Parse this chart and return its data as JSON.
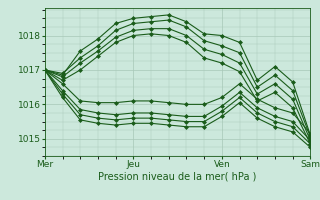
{
  "xlabel": "Pression niveau de la mer( hPa )",
  "bg_color": "#cce8dc",
  "plot_bg_color": "#cce8dc",
  "line_color": "#1a5c1a",
  "marker": "D",
  "marker_size": 2.0,
  "linewidth": 0.8,
  "ylim": [
    1014.5,
    1018.8
  ],
  "yticks": [
    1015,
    1016,
    1017,
    1018
  ],
  "xtick_labels": [
    "Mer",
    "Jeu",
    "Ven",
    "Sam"
  ],
  "grid_color": "#a8c8b8",
  "series": [
    [
      1017.0,
      1016.85,
      1017.55,
      1017.9,
      1018.35,
      1018.5,
      1018.55,
      1018.6,
      1018.4,
      1018.05,
      1018.0,
      1017.8,
      1016.7,
      1017.1,
      1016.65,
      1015.1
    ],
    [
      1017.0,
      1016.9,
      1017.35,
      1017.7,
      1018.15,
      1018.35,
      1018.4,
      1018.45,
      1018.25,
      1017.85,
      1017.7,
      1017.5,
      1016.5,
      1016.85,
      1016.4,
      1015.05
    ],
    [
      1017.0,
      1016.8,
      1017.2,
      1017.55,
      1017.95,
      1018.15,
      1018.2,
      1018.2,
      1018.0,
      1017.6,
      1017.45,
      1017.2,
      1016.3,
      1016.6,
      1016.15,
      1014.95
    ],
    [
      1017.0,
      1016.7,
      1017.0,
      1017.4,
      1017.8,
      1018.0,
      1018.05,
      1018.0,
      1017.8,
      1017.35,
      1017.2,
      1016.95,
      1016.1,
      1016.35,
      1015.9,
      1014.85
    ],
    [
      1017.0,
      1016.6,
      1016.1,
      1016.05,
      1016.05,
      1016.1,
      1016.1,
      1016.05,
      1016.0,
      1016.0,
      1016.2,
      1016.6,
      1016.15,
      1015.9,
      1015.75,
      1015.15
    ],
    [
      1017.0,
      1016.4,
      1015.85,
      1015.75,
      1015.7,
      1015.75,
      1015.75,
      1015.7,
      1015.65,
      1015.65,
      1015.95,
      1016.35,
      1015.9,
      1015.65,
      1015.5,
      1014.95
    ],
    [
      1017.0,
      1016.3,
      1015.7,
      1015.6,
      1015.55,
      1015.6,
      1015.6,
      1015.55,
      1015.5,
      1015.5,
      1015.8,
      1016.2,
      1015.75,
      1015.5,
      1015.35,
      1014.85
    ],
    [
      1017.0,
      1016.2,
      1015.55,
      1015.45,
      1015.4,
      1015.45,
      1015.45,
      1015.4,
      1015.35,
      1015.35,
      1015.65,
      1016.05,
      1015.6,
      1015.35,
      1015.2,
      1014.75
    ]
  ]
}
